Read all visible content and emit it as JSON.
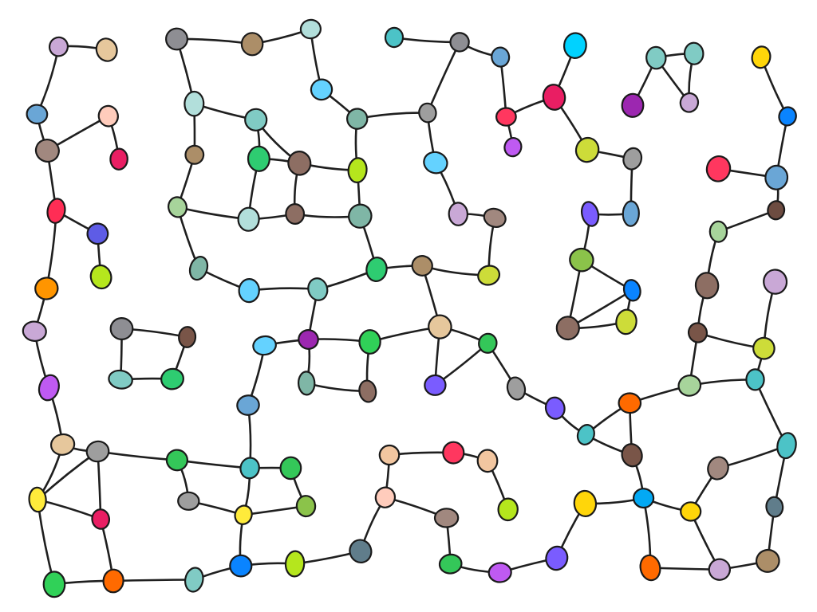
{
  "diagram": {
    "type": "network-graph",
    "style": "hand-drawn",
    "background": "#ffffff",
    "edge_color": "#1f1f1f",
    "node_count": 120,
    "edge_count": 150
  }
}
